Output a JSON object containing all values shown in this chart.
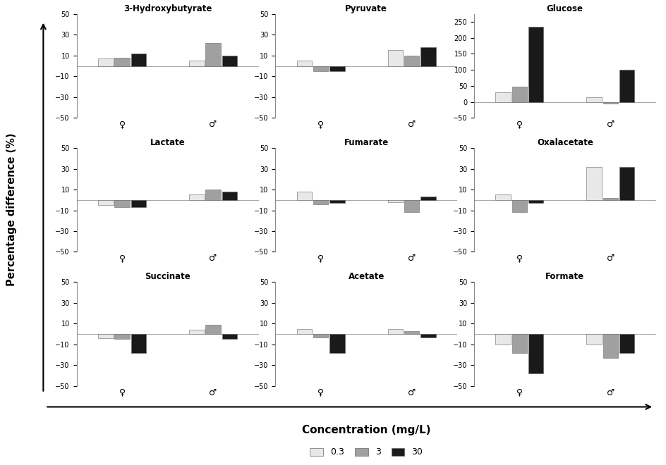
{
  "subplots": [
    {
      "title": "3-Hydroxybutyrate",
      "ylim": [
        -50,
        50
      ],
      "yticks": [
        -50,
        -30,
        -10,
        10,
        30,
        50
      ],
      "female": [
        7,
        8,
        12
      ],
      "male": [
        5,
        22,
        10
      ]
    },
    {
      "title": "Pyruvate",
      "ylim": [
        -50,
        50
      ],
      "yticks": [
        -50,
        -30,
        -10,
        10,
        30,
        50
      ],
      "female": [
        5,
        -5,
        -5
      ],
      "male": [
        15,
        10,
        18
      ]
    },
    {
      "title": "Glucose",
      "ylim": [
        -50,
        275
      ],
      "yticks": [
        -50,
        0,
        50,
        100,
        150,
        200,
        250
      ],
      "female": [
        30,
        48,
        235
      ],
      "male": [
        15,
        -5,
        100
      ]
    },
    {
      "title": "Lactate",
      "ylim": [
        -50,
        50
      ],
      "yticks": [
        -50,
        -30,
        -10,
        10,
        30,
        50
      ],
      "female": [
        -5,
        -7,
        -7
      ],
      "male": [
        5,
        10,
        8
      ]
    },
    {
      "title": "Fumarate",
      "ylim": [
        -50,
        50
      ],
      "yticks": [
        -50,
        -30,
        -10,
        10,
        30,
        50
      ],
      "female": [
        8,
        -4,
        -3
      ],
      "male": [
        -2,
        -12,
        3
      ]
    },
    {
      "title": "Oxalacetate",
      "ylim": [
        -50,
        50
      ],
      "yticks": [
        -50,
        -30,
        -10,
        10,
        30,
        50
      ],
      "female": [
        5,
        -12,
        -3
      ],
      "male": [
        32,
        2,
        32
      ]
    },
    {
      "title": "Succinate",
      "ylim": [
        -50,
        50
      ],
      "yticks": [
        -50,
        -30,
        -10,
        10,
        30,
        50
      ],
      "female": [
        -4,
        -5,
        -18
      ],
      "male": [
        4,
        9,
        -5
      ]
    },
    {
      "title": "Acetate",
      "ylim": [
        -50,
        50
      ],
      "yticks": [
        -50,
        -30,
        -10,
        10,
        30,
        50
      ],
      "female": [
        5,
        -3,
        -18
      ],
      "male": [
        5,
        3,
        -3
      ]
    },
    {
      "title": "Formate",
      "ylim": [
        -50,
        50
      ],
      "yticks": [
        -50,
        -30,
        -10,
        10,
        30,
        50
      ],
      "female": [
        -10,
        -18,
        -38
      ],
      "male": [
        -10,
        -23,
        -18
      ]
    }
  ],
  "colors": [
    "#e8e8e8",
    "#a0a0a0",
    "#1a1a1a"
  ],
  "legend_labels": [
    "0.3",
    "3",
    "30"
  ],
  "xlabel": "Concentration (mg/L)",
  "ylabel": "Percentage difference (%)",
  "female_symbol": "♀",
  "male_symbol": "♂"
}
